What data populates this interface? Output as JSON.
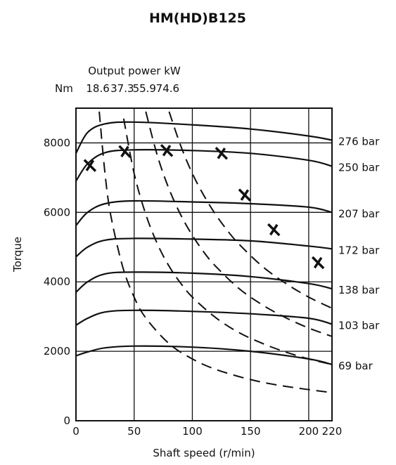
{
  "chart_data": {
    "type": "line",
    "title": "HM(HD)B125",
    "xlabel": "Shaft speed (r/min)",
    "ylabel": "Torque",
    "xlim": [
      0,
      220
    ],
    "ylim": [
      0,
      9000
    ],
    "x_ticks": [
      {
        "value": 0,
        "label": "0"
      },
      {
        "value": 50,
        "label": "50"
      },
      {
        "value": 100,
        "label": "100"
      },
      {
        "value": 150,
        "label": "150"
      },
      {
        "value": 200,
        "label": "200"
      },
      {
        "value": 220,
        "label": "220"
      }
    ],
    "y_ticks": [
      {
        "value": 0,
        "label": "0"
      },
      {
        "value": 2000,
        "label": "2000"
      },
      {
        "value": 4000,
        "label": "4000"
      },
      {
        "value": 6000,
        "label": "6000"
      },
      {
        "value": 8000,
        "label": "8000"
      }
    ],
    "x_grid": [
      50,
      100,
      150,
      200
    ],
    "y_grid": [
      2000,
      4000,
      6000,
      8000
    ],
    "grid": true,
    "power_axis": {
      "title": "Output power kW",
      "unit_label": "Nm",
      "labels": [
        "18.6",
        "37.3",
        "55.9",
        "74.6"
      ]
    },
    "series": [
      {
        "name": "276 bar",
        "x": [
          0,
          10,
          25,
          50,
          100,
          150,
          200,
          220
        ],
        "y": [
          7700,
          8300,
          8550,
          8600,
          8520,
          8400,
          8200,
          8080
        ]
      },
      {
        "name": "250 bar",
        "x": [
          0,
          10,
          25,
          50,
          100,
          150,
          200,
          220
        ],
        "y": [
          6900,
          7400,
          7720,
          7800,
          7780,
          7700,
          7500,
          7330
        ]
      },
      {
        "name": "207 bar",
        "x": [
          0,
          10,
          25,
          50,
          100,
          150,
          200,
          220
        ],
        "y": [
          5620,
          6000,
          6250,
          6330,
          6300,
          6250,
          6150,
          6000
        ]
      },
      {
        "name": "172 bar",
        "x": [
          0,
          10,
          25,
          50,
          100,
          150,
          200,
          220
        ],
        "y": [
          4720,
          5000,
          5200,
          5250,
          5230,
          5180,
          5030,
          4950
        ]
      },
      {
        "name": "138 bar",
        "x": [
          0,
          10,
          25,
          50,
          100,
          150,
          200,
          220
        ],
        "y": [
          3700,
          4000,
          4230,
          4280,
          4250,
          4150,
          3950,
          3800
        ]
      },
      {
        "name": "103 bar",
        "x": [
          0,
          10,
          25,
          50,
          100,
          150,
          200,
          220
        ],
        "y": [
          2750,
          2950,
          3130,
          3180,
          3150,
          3080,
          2950,
          2780
        ]
      },
      {
        "name": "69 bar",
        "x": [
          0,
          10,
          25,
          50,
          100,
          150,
          200,
          220
        ],
        "y": [
          1870,
          1980,
          2100,
          2150,
          2120,
          2000,
          1780,
          1620
        ]
      }
    ],
    "power_curves": [
      {
        "power_kw": 18.6,
        "x": [
          20,
          25,
          30,
          40,
          50,
          60,
          80,
          100,
          120,
          150,
          180,
          220
        ],
        "y": [
          8900,
          7100,
          5900,
          4450,
          3560,
          2960,
          2220,
          1780,
          1480,
          1185,
          990,
          810
        ]
      },
      {
        "power_kw": 37.3,
        "x": [
          41,
          50,
          60,
          70,
          80,
          90,
          100,
          120,
          140,
          160,
          180,
          200,
          220
        ],
        "y": [
          8700,
          7120,
          5940,
          5090,
          4450,
          3960,
          3560,
          2970,
          2540,
          2230,
          1980,
          1780,
          1620
        ]
      },
      {
        "power_kw": 55.9,
        "x": [
          60,
          70,
          80,
          90,
          100,
          110,
          120,
          140,
          160,
          180,
          200,
          220
        ],
        "y": [
          8900,
          7630,
          6670,
          5930,
          5340,
          4850,
          4450,
          3810,
          3340,
          2970,
          2670,
          2430
        ]
      },
      {
        "power_kw": 74.6,
        "x": [
          80,
          90,
          100,
          110,
          120,
          130,
          140,
          160,
          180,
          200,
          220
        ],
        "y": [
          8900,
          7920,
          7120,
          6480,
          5940,
          5480,
          5090,
          4450,
          3960,
          3560,
          3240
        ]
      }
    ],
    "markers": {
      "symbol": "cross",
      "x": [
        12,
        42,
        78,
        125,
        145,
        170,
        208
      ],
      "y": [
        7350,
        7750,
        7780,
        7700,
        6500,
        5500,
        4550
      ]
    }
  }
}
